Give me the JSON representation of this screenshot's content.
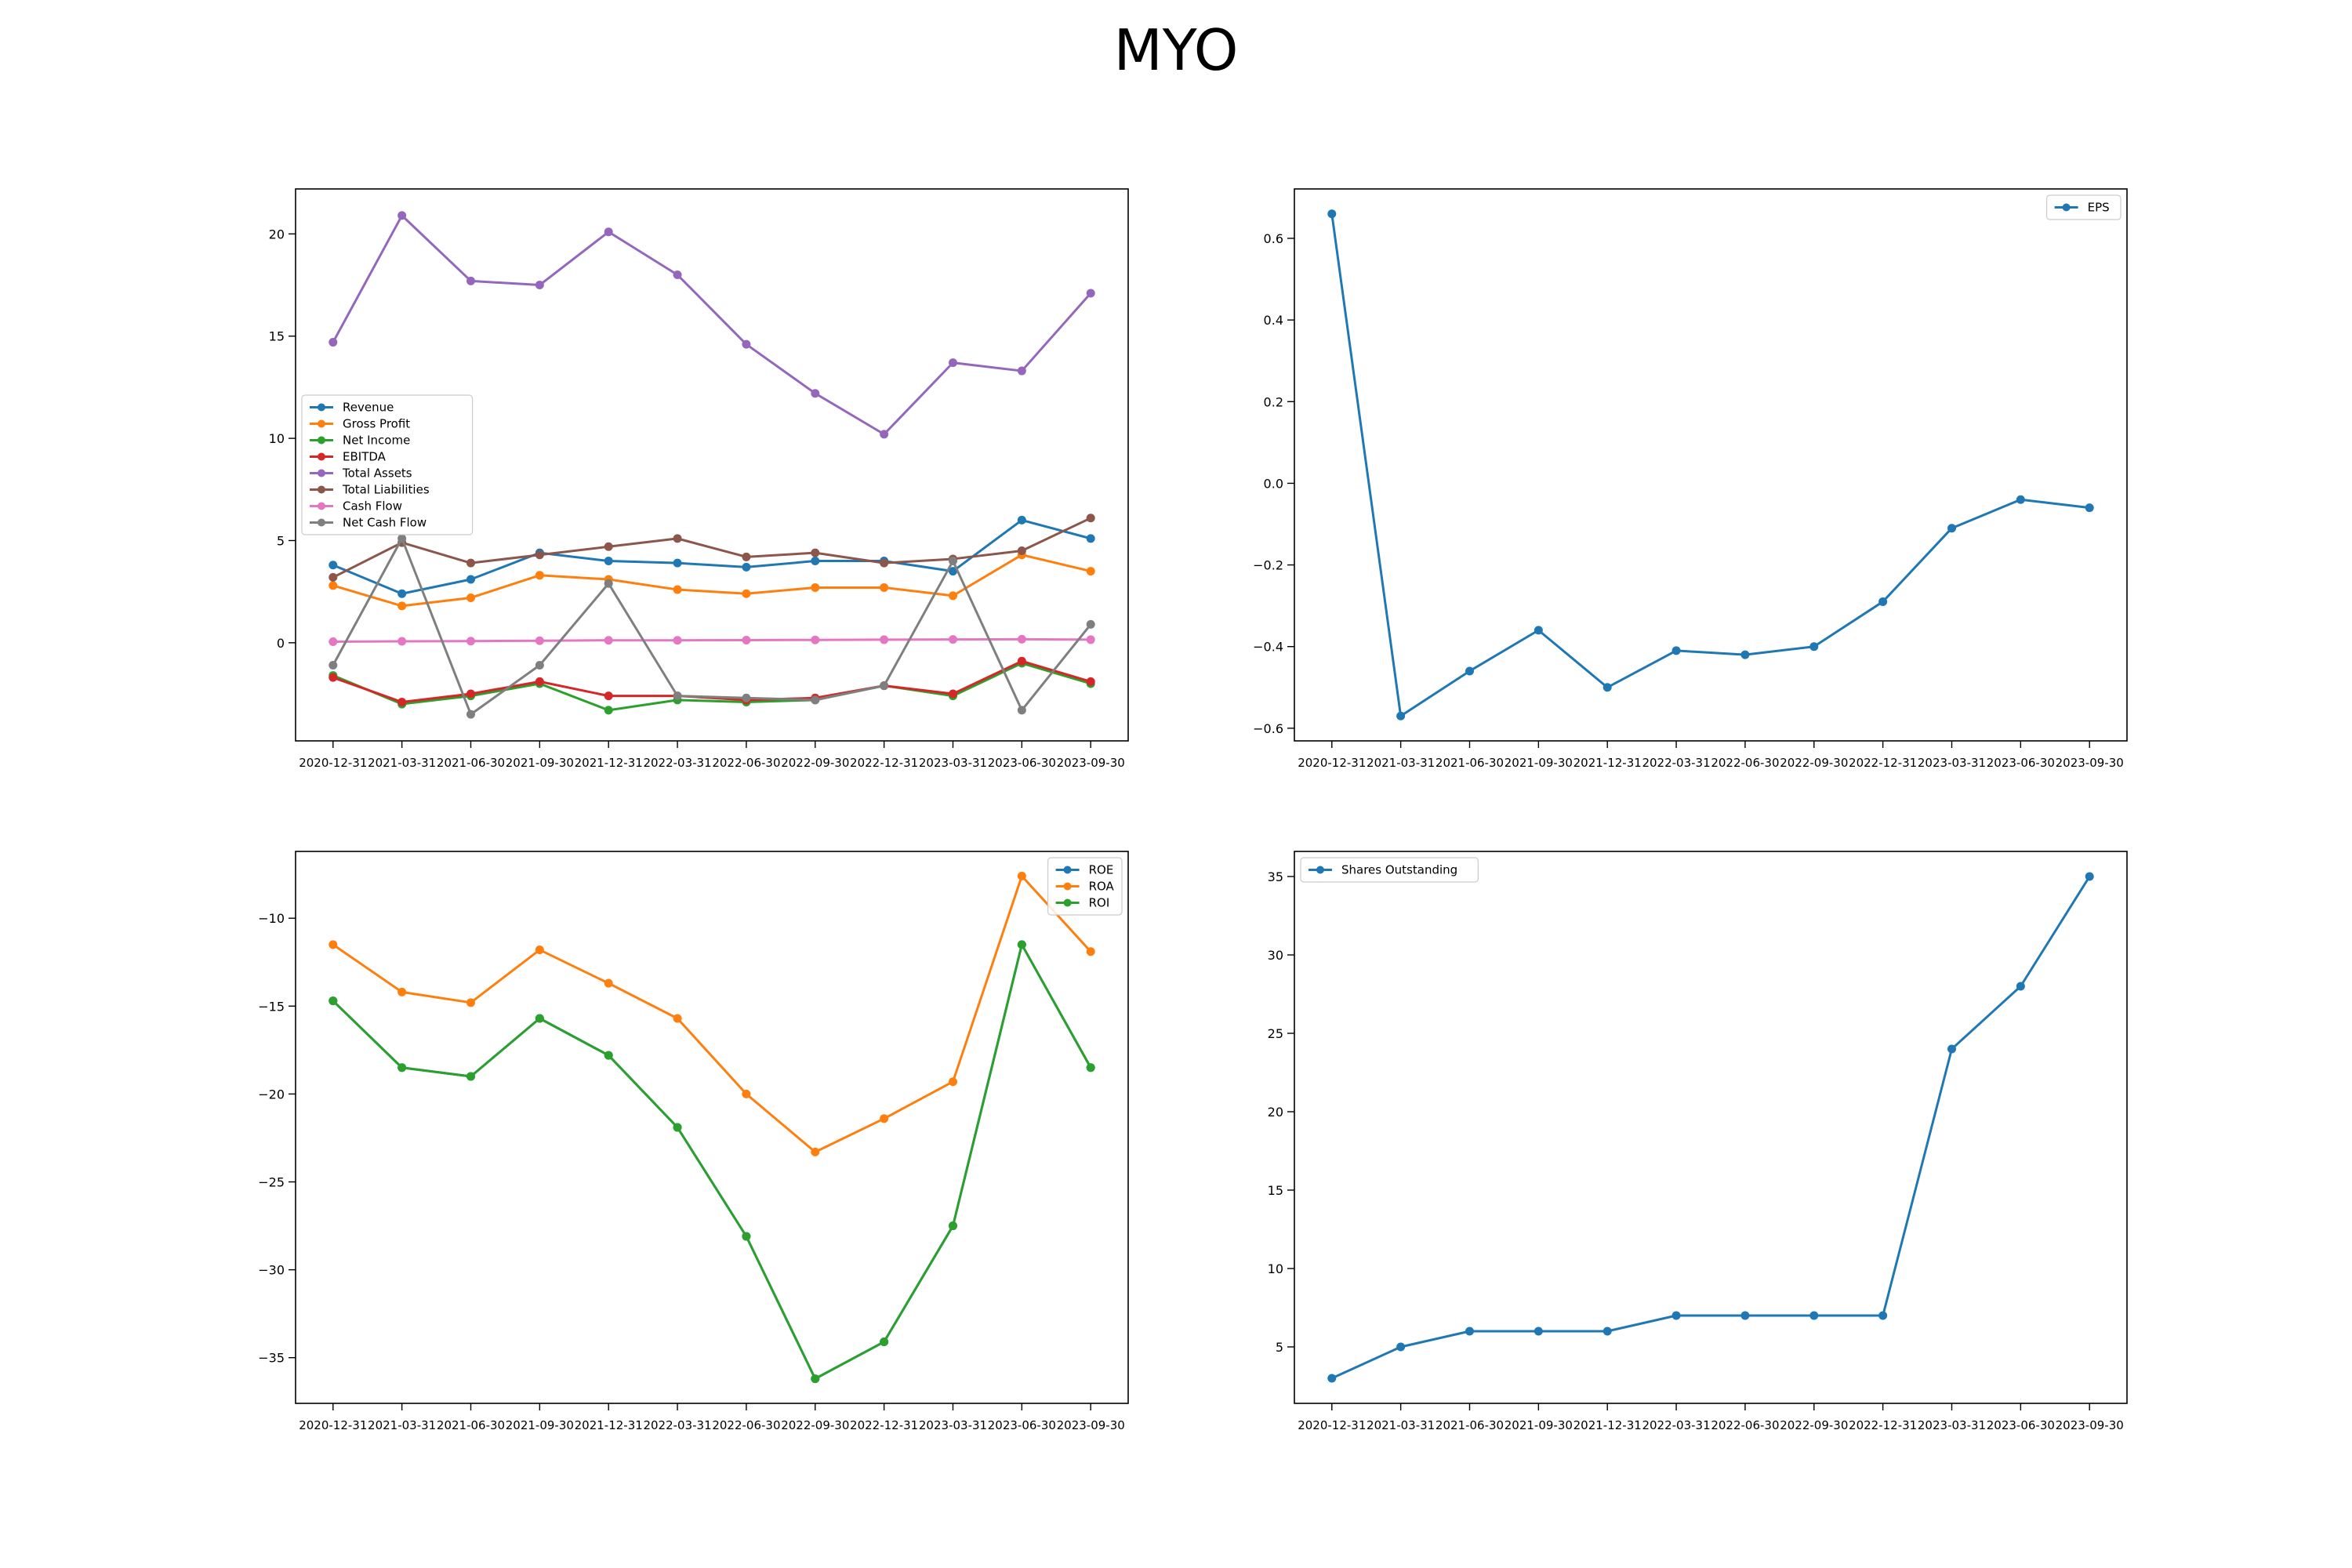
{
  "title": "MYO",
  "chart_data": [
    {
      "type": "line",
      "categories": [
        "2020-12-31",
        "2021-03-31",
        "2021-06-30",
        "2021-09-30",
        "2021-12-31",
        "2022-03-31",
        "2022-06-30",
        "2022-09-30",
        "2022-12-31",
        "2023-03-31",
        "2023-06-30",
        "2023-09-30"
      ],
      "ylim": [
        -4.8,
        22.2
      ],
      "yticks": [
        0,
        5,
        10,
        15,
        20
      ],
      "legend_position": "center-left",
      "grid": false,
      "series": [
        {
          "name": "Revenue",
          "color": "#1f77b4",
          "values": [
            3.8,
            2.4,
            3.1,
            4.4,
            4.0,
            3.9,
            3.7,
            4.0,
            4.0,
            3.5,
            6.0,
            5.1
          ]
        },
        {
          "name": "Gross Profit",
          "color": "#ff7f0e",
          "values": [
            2.8,
            1.8,
            2.2,
            3.3,
            3.1,
            2.6,
            2.4,
            2.7,
            2.7,
            2.3,
            4.3,
            3.5
          ]
        },
        {
          "name": "Net Income",
          "color": "#2ca02c",
          "values": [
            -1.6,
            -3.0,
            -2.6,
            -2.0,
            -3.3,
            -2.8,
            -2.9,
            -2.8,
            -2.1,
            -2.6,
            -1.0,
            -2.0
          ]
        },
        {
          "name": "EBITDA",
          "color": "#d62728",
          "values": [
            -1.7,
            -2.9,
            -2.5,
            -1.9,
            -2.6,
            -2.6,
            -2.8,
            -2.7,
            -2.1,
            -2.5,
            -0.9,
            -1.9
          ]
        },
        {
          "name": "Total Assets",
          "color": "#9467bd",
          "values": [
            14.7,
            20.9,
            17.7,
            17.5,
            20.1,
            18.0,
            14.6,
            12.2,
            10.2,
            13.7,
            13.3,
            17.1
          ]
        },
        {
          "name": "Total Liabilities",
          "color": "#8c564b",
          "values": [
            3.2,
            4.9,
            3.9,
            4.3,
            4.7,
            5.1,
            4.2,
            4.4,
            3.9,
            4.1,
            4.5,
            6.1
          ]
        },
        {
          "name": "Cash Flow",
          "color": "#e377c2",
          "values": [
            0.05,
            0.07,
            0.08,
            0.1,
            0.12,
            0.12,
            0.13,
            0.14,
            0.15,
            0.16,
            0.17,
            0.15
          ]
        },
        {
          "name": "Net Cash Flow",
          "color": "#7f7f7f",
          "values": [
            -1.1,
            5.1,
            -3.5,
            -1.1,
            2.9,
            -2.6,
            -2.7,
            -2.8,
            -2.1,
            4.0,
            -3.3,
            0.9
          ]
        }
      ]
    },
    {
      "type": "line",
      "categories": [
        "2020-12-31",
        "2021-03-31",
        "2021-06-30",
        "2021-09-30",
        "2021-12-31",
        "2022-03-31",
        "2022-06-30",
        "2022-09-30",
        "2022-12-31",
        "2023-03-31",
        "2023-06-30",
        "2023-09-30"
      ],
      "ylim": [
        -0.631,
        0.721
      ],
      "yticks": [
        -0.6,
        -0.4,
        -0.2,
        0.0,
        0.2,
        0.4,
        0.6
      ],
      "yticklabels": [
        "−0.6",
        "−0.4",
        "−0.2",
        "0.0",
        "0.2",
        "0.4",
        "0.6"
      ],
      "legend_position": "top-right",
      "grid": false,
      "series": [
        {
          "name": "EPS",
          "color": "#1f77b4",
          "values": [
            0.66,
            -0.57,
            -0.46,
            -0.36,
            -0.5,
            -0.41,
            -0.42,
            -0.4,
            -0.29,
            -0.11,
            -0.04,
            -0.06
          ]
        }
      ]
    },
    {
      "type": "line",
      "categories": [
        "2020-12-31",
        "2021-03-31",
        "2021-06-30",
        "2021-09-30",
        "2021-12-31",
        "2022-03-31",
        "2022-06-30",
        "2022-09-30",
        "2022-12-31",
        "2023-03-31",
        "2023-06-30",
        "2023-09-30"
      ],
      "ylim": [
        -37.6,
        -6.2
      ],
      "yticks": [
        -35,
        -30,
        -25,
        -20,
        -15,
        -10
      ],
      "yticklabels": [
        "−35",
        "−30",
        "−25",
        "−20",
        "−15",
        "−10"
      ],
      "legend_position": "top-right",
      "grid": false,
      "series": [
        {
          "name": "ROE",
          "color": "#1f77b4",
          "values": [
            -14.7,
            -18.5,
            -19.0,
            -15.7,
            -17.8,
            -21.9,
            -28.1,
            -36.2,
            -34.1,
            -27.5,
            -11.5,
            -18.5
          ]
        },
        {
          "name": "ROA",
          "color": "#ff7f0e",
          "values": [
            -11.5,
            -14.2,
            -14.8,
            -11.8,
            -13.7,
            -15.7,
            -20.0,
            -23.3,
            -21.4,
            -19.3,
            -7.6,
            -11.9
          ]
        },
        {
          "name": "ROI",
          "color": "#2ca02c",
          "values": [
            -14.7,
            -18.5,
            -19.0,
            -15.7,
            -17.8,
            -21.9,
            -28.1,
            -36.2,
            -34.1,
            -27.5,
            -11.5,
            -18.5
          ]
        }
      ]
    },
    {
      "type": "line",
      "categories": [
        "2020-12-31",
        "2021-03-31",
        "2021-06-30",
        "2021-09-30",
        "2021-12-31",
        "2022-03-31",
        "2022-06-30",
        "2022-09-30",
        "2022-12-31",
        "2023-03-31",
        "2023-06-30",
        "2023-09-30"
      ],
      "ylim": [
        1.4,
        36.6
      ],
      "yticks": [
        5,
        10,
        15,
        20,
        25,
        30,
        35
      ],
      "legend_position": "top-left",
      "grid": false,
      "series": [
        {
          "name": "Shares Outstanding",
          "color": "#1f77b4",
          "values": [
            3,
            5,
            6,
            6,
            6,
            7,
            7,
            7,
            7,
            24,
            28,
            35
          ]
        }
      ]
    }
  ]
}
